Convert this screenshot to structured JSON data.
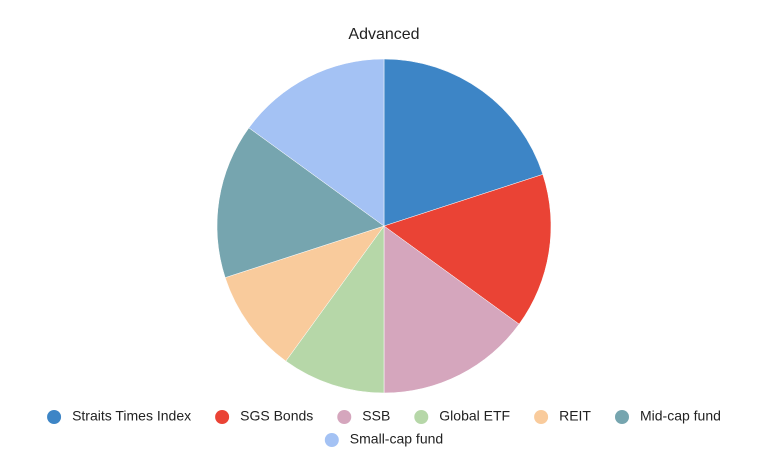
{
  "chart_data": {
    "type": "pie",
    "title": "Advanced",
    "categories": [
      "Straits Times Index",
      "SGS Bonds",
      "SSB",
      "Global ETF",
      "REIT",
      "Mid-cap fund",
      "Small-cap fund"
    ],
    "values": [
      20,
      15,
      15,
      10,
      10,
      15,
      15
    ],
    "colors": [
      "#3d85c6",
      "#ea4335",
      "#d5a6bd",
      "#b6d7a8",
      "#f9cb9c",
      "#76a5af",
      "#a4c2f4"
    ],
    "legend": "bottom"
  }
}
